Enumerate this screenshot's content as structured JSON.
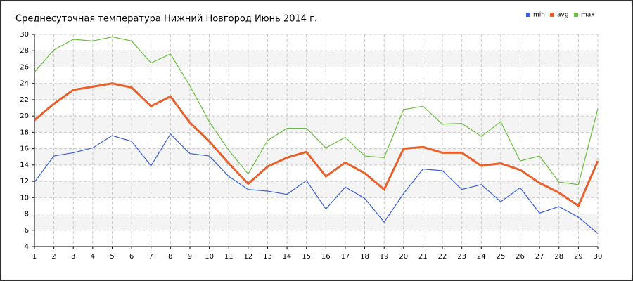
{
  "chart_data": {
    "type": "line",
    "title": "Среднесуточная температура Нижний Новгород  Июнь 2014 г.",
    "x": [
      1,
      2,
      3,
      4,
      5,
      6,
      7,
      8,
      9,
      10,
      11,
      12,
      13,
      14,
      15,
      16,
      17,
      18,
      19,
      20,
      21,
      22,
      23,
      24,
      25,
      26,
      27,
      28,
      29,
      30
    ],
    "xlim": [
      1,
      30
    ],
    "xticks": [
      1,
      2,
      3,
      4,
      5,
      6,
      7,
      8,
      9,
      10,
      11,
      12,
      13,
      14,
      15,
      16,
      17,
      18,
      19,
      20,
      21,
      22,
      23,
      24,
      25,
      26,
      27,
      28,
      29,
      30
    ],
    "ylim": [
      4,
      30
    ],
    "yticks": [
      4,
      6,
      8,
      10,
      12,
      14,
      16,
      18,
      20,
      22,
      24,
      26,
      28,
      30
    ],
    "grid": true,
    "legend": "top-right",
    "series": [
      {
        "name": "min",
        "color": "#3a5fd8",
        "values": [
          11.9,
          15.1,
          15.5,
          16.1,
          17.6,
          16.9,
          13.9,
          17.8,
          15.4,
          15.1,
          12.6,
          11.0,
          10.8,
          10.4,
          12.1,
          8.6,
          11.3,
          9.9,
          7.0,
          10.5,
          13.5,
          13.3,
          11.0,
          11.6,
          9.5,
          11.2,
          8.1,
          8.9,
          7.6,
          5.6
        ]
      },
      {
        "name": "avg",
        "color": "#e8602c",
        "values": [
          19.5,
          21.5,
          23.2,
          23.6,
          24.0,
          23.5,
          21.2,
          22.4,
          19.2,
          16.9,
          14.2,
          11.7,
          13.8,
          14.9,
          15.6,
          12.6,
          14.3,
          13.0,
          11.0,
          16.0,
          16.2,
          15.5,
          15.5,
          13.9,
          14.2,
          13.4,
          11.8,
          10.6,
          9.0,
          14.5
        ]
      },
      {
        "name": "max",
        "color": "#6abf40",
        "values": [
          25.4,
          28.1,
          29.4,
          29.2,
          29.7,
          29.2,
          26.5,
          27.6,
          23.7,
          19.3,
          15.8,
          12.9,
          17.0,
          18.5,
          18.5,
          16.1,
          17.4,
          15.1,
          14.9,
          20.8,
          21.2,
          19.0,
          19.1,
          17.5,
          19.3,
          14.5,
          15.1,
          11.9,
          11.6,
          20.9
        ]
      }
    ]
  }
}
